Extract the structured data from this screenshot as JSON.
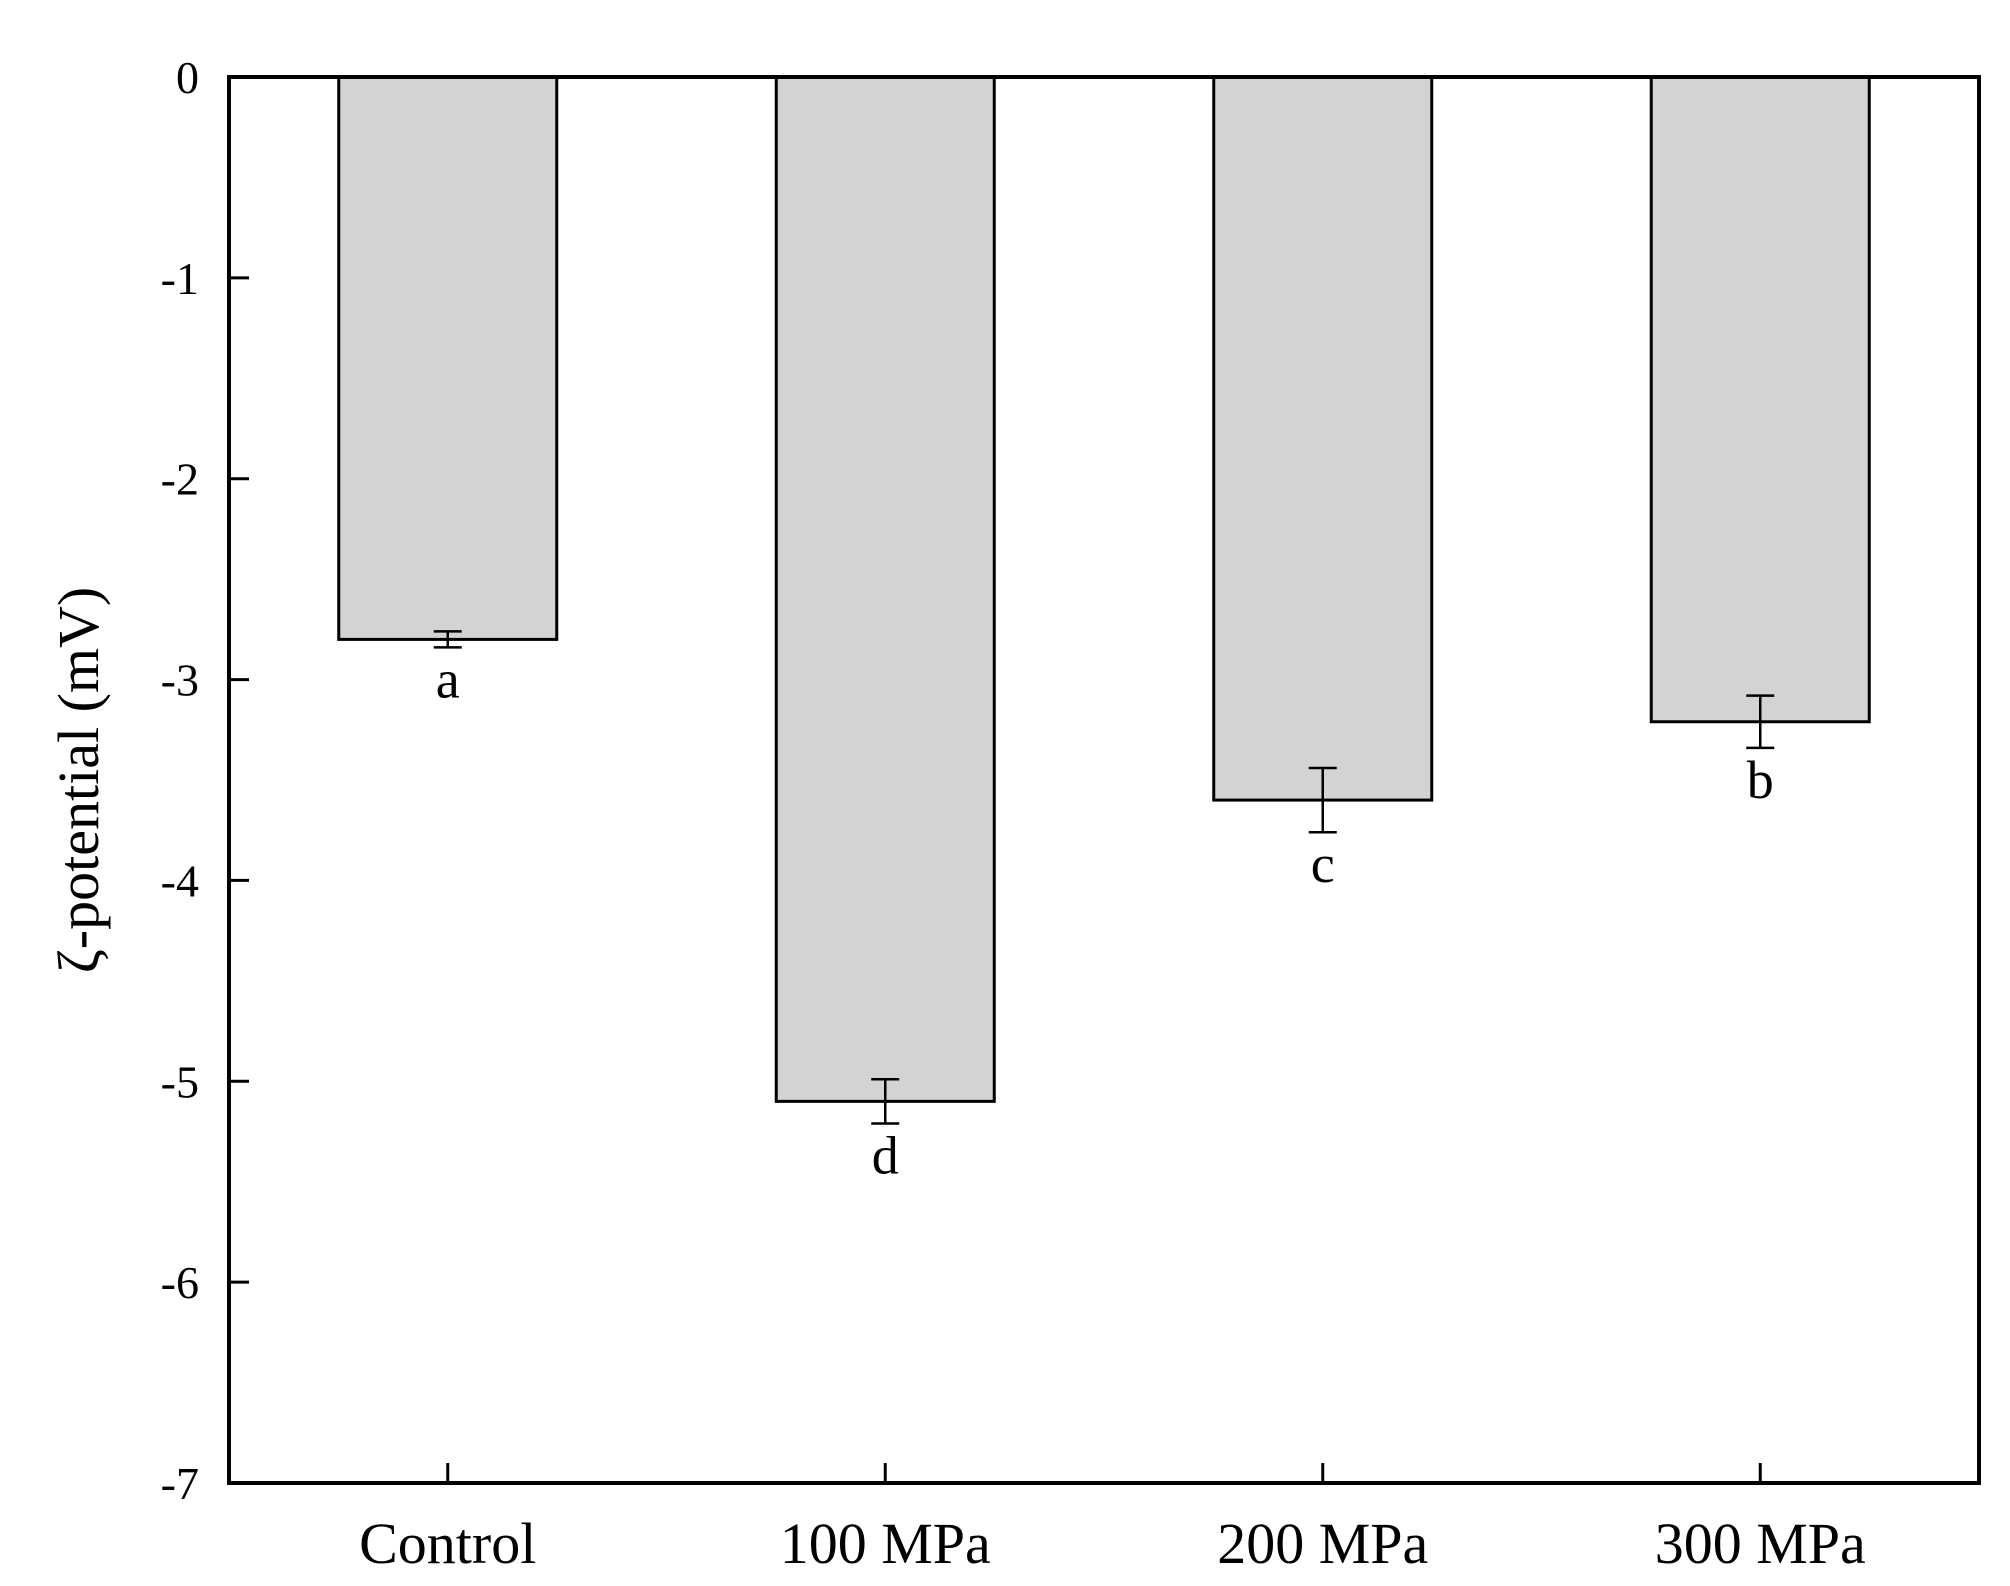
{
  "chart_data": {
    "type": "bar",
    "categories": [
      "Control",
      "100 MPa",
      "200 MPa",
      "300 MPa"
    ],
    "values": [
      -2.8,
      -5.1,
      -3.6,
      -3.21
    ],
    "errors": [
      0.04,
      0.11,
      0.16,
      0.13
    ],
    "significance_letters": [
      "a",
      "d",
      "c",
      "b"
    ],
    "title": "",
    "xlabel": "",
    "ylabel": "ζ-potential (mV)",
    "ylim": [
      -7,
      0
    ],
    "yticks": [
      "0",
      "-1",
      "-2",
      "-3",
      "-4",
      "-5",
      "-6",
      "-7"
    ],
    "bar_color": "#d3d3d3",
    "grid": false,
    "legend": "none"
  }
}
